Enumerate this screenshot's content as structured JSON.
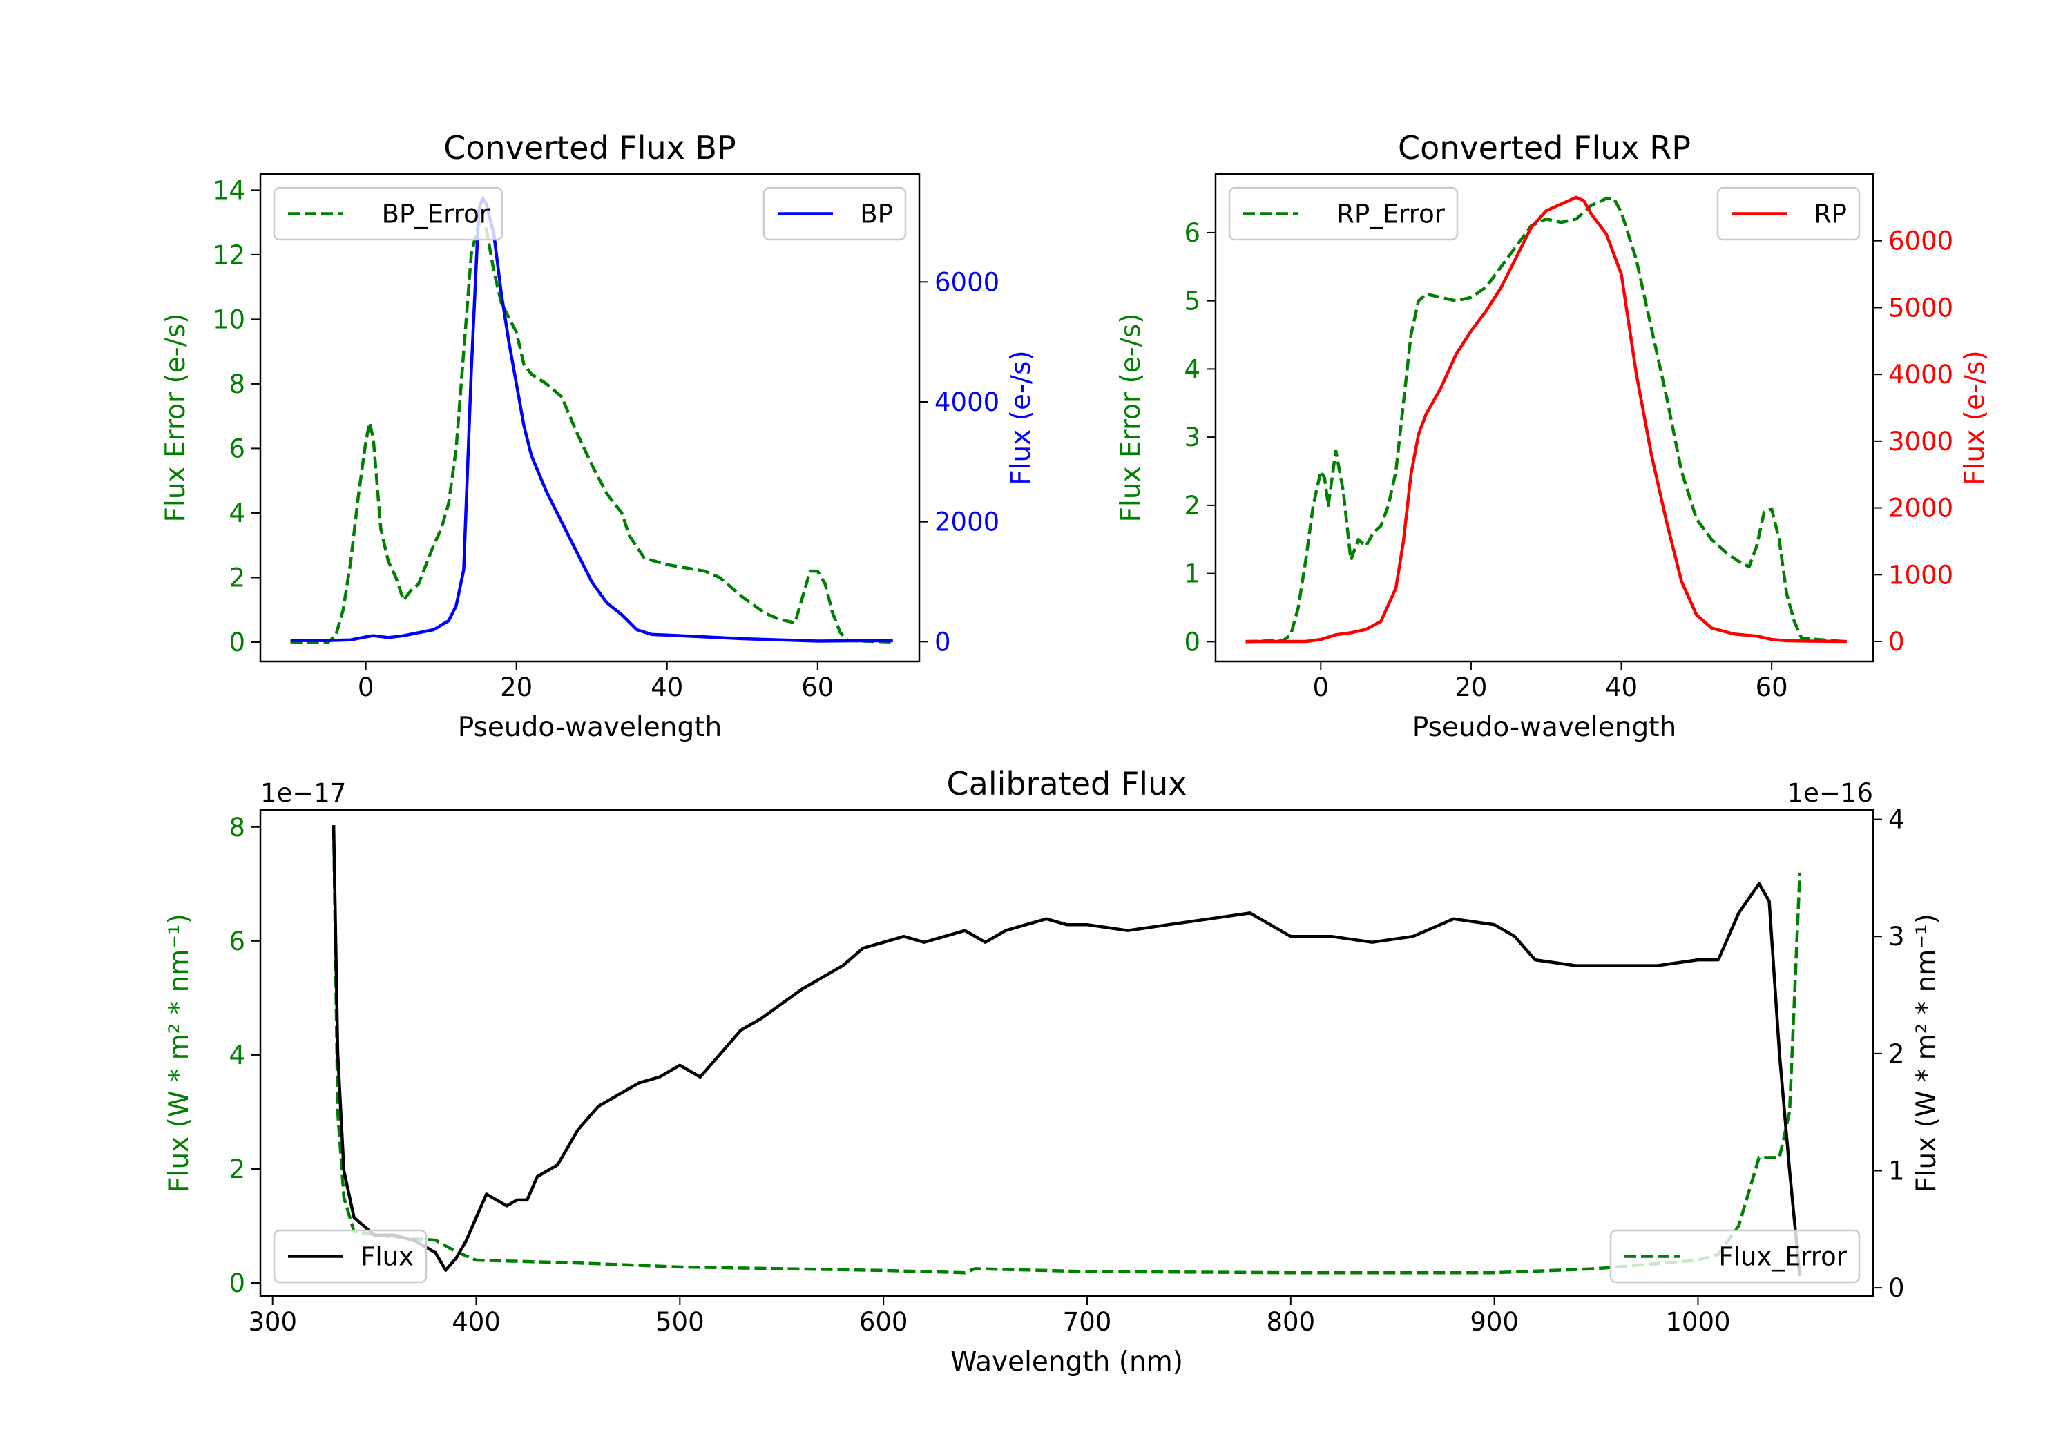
{
  "chart_data": [
    {
      "type": "line",
      "title": "Converted Flux BP",
      "xlabel": "Pseudo-wavelength",
      "ylabel": "Flux Error (e-/s)",
      "ylabel_right": "Flux (e-/s)",
      "xlim": [
        -14,
        73.5
      ],
      "ylim": [
        -0.6,
        14.5
      ],
      "ylim_right": [
        -330,
        7800
      ],
      "xticks": [
        0,
        20,
        40,
        60
      ],
      "yticks": [
        0,
        2,
        4,
        6,
        8,
        10,
        12,
        14
      ],
      "yticks_right": [
        0,
        2000,
        4000,
        6000
      ],
      "left_color": "#008000",
      "right_color": "#0000ff",
      "series": [
        {
          "name": "BP_Error",
          "axis": "left",
          "color": "#008000",
          "style": "dashed",
          "legend": "upper left",
          "x": [
            -10,
            -5,
            -4,
            -3,
            -2,
            -1,
            0,
            0.5,
            1,
            2,
            3,
            4,
            5,
            6,
            7,
            8,
            9,
            10,
            11,
            12,
            13,
            14,
            15,
            16,
            17,
            18,
            20,
            21,
            22,
            24,
            26,
            28,
            30,
            32,
            34,
            35,
            37,
            40,
            45,
            47,
            50,
            53,
            55,
            57,
            58,
            59,
            60,
            61,
            62,
            63,
            64,
            70
          ],
          "y": [
            0,
            0,
            0.2,
            1,
            2.5,
            4.5,
            6.2,
            6.8,
            6.3,
            3.5,
            2.5,
            2.0,
            1.3,
            1.6,
            1.8,
            2.4,
            3.0,
            3.5,
            4.3,
            6,
            9,
            12,
            13,
            12.8,
            11.5,
            10.5,
            9.6,
            8.6,
            8.3,
            8.0,
            7.6,
            6.5,
            5.5,
            4.6,
            4.0,
            3.3,
            2.6,
            2.4,
            2.2,
            2.0,
            1.4,
            0.9,
            0.7,
            0.6,
            1.4,
            2.2,
            2.2,
            1.8,
            0.9,
            0.3,
            0.05,
            0
          ]
        },
        {
          "name": "BP",
          "axis": "right",
          "color": "#0000ff",
          "style": "solid",
          "legend": "upper right",
          "x": [
            -10,
            -5,
            -2,
            0,
            1,
            3,
            5,
            7,
            9,
            11,
            12,
            13,
            14,
            15,
            15.5,
            16,
            17,
            18,
            19,
            20,
            21,
            22,
            24,
            26,
            28,
            30,
            32,
            34,
            36,
            38,
            40,
            45,
            50,
            55,
            60,
            65,
            70
          ],
          "y": [
            20,
            20,
            30,
            80,
            100,
            70,
            100,
            150,
            200,
            350,
            600,
            1200,
            4500,
            7200,
            7400,
            7300,
            6800,
            5800,
            5000,
            4300,
            3600,
            3100,
            2500,
            2000,
            1500,
            1000,
            650,
            450,
            200,
            120,
            110,
            80,
            50,
            30,
            10,
            15,
            15
          ]
        }
      ]
    },
    {
      "type": "line",
      "title": "Converted Flux RP",
      "xlabel": "Pseudo-wavelength",
      "ylabel": "Flux Error (e-/s)",
      "ylabel_right": "Flux (e-/s)",
      "xlim": [
        -14,
        73.5
      ],
      "ylim": [
        -0.29,
        6.86
      ],
      "ylim_right": [
        -300,
        7000
      ],
      "xticks": [
        0,
        20,
        40,
        60
      ],
      "yticks": [
        0,
        1,
        2,
        3,
        4,
        5,
        6
      ],
      "yticks_right": [
        0,
        1000,
        2000,
        3000,
        4000,
        5000,
        6000
      ],
      "left_color": "#008000",
      "right_color": "#ff0000",
      "series": [
        {
          "name": "RP_Error",
          "axis": "left",
          "color": "#008000",
          "style": "dashed",
          "legend": "upper left",
          "x": [
            -10,
            -5,
            -4,
            -3,
            -2,
            -1,
            0,
            0.5,
            1,
            2,
            3,
            4,
            5,
            6,
            7,
            8,
            9,
            10,
            11,
            12,
            13,
            14,
            16,
            18,
            20,
            22,
            24,
            26,
            28,
            30,
            32,
            34,
            36,
            38,
            39,
            40,
            42,
            44,
            46,
            48,
            50,
            52,
            54,
            56,
            57,
            58,
            59,
            60,
            61,
            62,
            63,
            64,
            70
          ],
          "y": [
            0,
            0.02,
            0.1,
            0.5,
            1.2,
            2,
            2.5,
            2.4,
            2.0,
            2.8,
            2.2,
            1.2,
            1.5,
            1.4,
            1.6,
            1.7,
            2.0,
            2.5,
            3.5,
            4.5,
            5.0,
            5.1,
            5.05,
            5.0,
            5.05,
            5.2,
            5.5,
            5.8,
            6.1,
            6.2,
            6.15,
            6.2,
            6.4,
            6.5,
            6.5,
            6.3,
            5.6,
            4.6,
            3.6,
            2.5,
            1.8,
            1.5,
            1.3,
            1.15,
            1.1,
            1.4,
            1.9,
            1.95,
            1.5,
            0.7,
            0.3,
            0.05,
            0
          ]
        },
        {
          "name": "RP",
          "axis": "right",
          "color": "#ff0000",
          "style": "solid",
          "legend": "upper right",
          "x": [
            -10,
            -2,
            0,
            2,
            4,
            6,
            8,
            10,
            11,
            12,
            13,
            14,
            16,
            18,
            20,
            22,
            24,
            26,
            28,
            30,
            32,
            34,
            35,
            36,
            38,
            40,
            42,
            44,
            46,
            48,
            50,
            52,
            55,
            58,
            60,
            62,
            65,
            70
          ],
          "y": [
            0,
            0,
            30,
            100,
            130,
            180,
            300,
            800,
            1500,
            2500,
            3100,
            3400,
            3800,
            4300,
            4650,
            4950,
            5300,
            5750,
            6200,
            6450,
            6550,
            6650,
            6600,
            6400,
            6100,
            5500,
            4000,
            2800,
            1800,
            900,
            400,
            200,
            110,
            80,
            30,
            10,
            5,
            0
          ]
        }
      ]
    },
    {
      "type": "line",
      "title": "Calibrated Flux",
      "xlabel": "Wavelength (nm)",
      "ylabel": "Flux (W * m² * nm⁻¹)",
      "ylabel_right": "Flux (W * m² * nm⁻¹)",
      "offset_left": "1e−17",
      "offset_right": "1e−16",
      "xlim": [
        294,
        1086
      ],
      "ylim": [
        -0.23,
        8.3
      ],
      "ylim_right": [
        -0.07,
        4.08
      ],
      "xticks": [
        300,
        400,
        500,
        600,
        700,
        800,
        900,
        1000
      ],
      "yticks": [
        0,
        2,
        4,
        6,
        8
      ],
      "yticks_right": [
        0,
        1,
        2,
        3,
        4
      ],
      "left_color": "#008000",
      "right_color": "#000000",
      "series": [
        {
          "name": "Flux_Error",
          "axis": "left",
          "color": "#008000",
          "style": "dashed",
          "legend": "lower right",
          "x": [
            330,
            332,
            335,
            340,
            360,
            380,
            390,
            400,
            450,
            500,
            600,
            640,
            645,
            700,
            800,
            900,
            950,
            1000,
            1010,
            1020,
            1030,
            1040,
            1045,
            1050
          ],
          "y": [
            8.0,
            3.0,
            1.5,
            0.9,
            0.8,
            0.75,
            0.55,
            0.4,
            0.35,
            0.28,
            0.22,
            0.18,
            0.25,
            0.2,
            0.18,
            0.18,
            0.25,
            0.4,
            0.5,
            1.0,
            2.2,
            2.2,
            3.0,
            7.2
          ]
        },
        {
          "name": "Flux",
          "axis": "right",
          "color": "#000000",
          "style": "solid",
          "legend": "lower left",
          "x": [
            330,
            332,
            335,
            340,
            350,
            360,
            370,
            380,
            385,
            390,
            395,
            400,
            405,
            410,
            415,
            420,
            425,
            430,
            440,
            450,
            460,
            470,
            480,
            490,
            500,
            510,
            520,
            530,
            540,
            560,
            580,
            590,
            600,
            610,
            620,
            640,
            650,
            660,
            670,
            680,
            690,
            700,
            720,
            740,
            760,
            780,
            800,
            820,
            840,
            860,
            880,
            900,
            910,
            920,
            940,
            960,
            980,
            1000,
            1010,
            1020,
            1030,
            1035,
            1040,
            1045,
            1050
          ],
          "y": [
            3.95,
            2.0,
            1.0,
            0.6,
            0.45,
            0.45,
            0.4,
            0.3,
            0.15,
            0.25,
            0.4,
            0.6,
            0.8,
            0.75,
            0.7,
            0.75,
            0.75,
            0.95,
            1.05,
            1.35,
            1.55,
            1.65,
            1.75,
            1.8,
            1.9,
            1.8,
            2.0,
            2.2,
            2.3,
            2.55,
            2.75,
            2.9,
            2.95,
            3.0,
            2.95,
            3.05,
            2.95,
            3.05,
            3.1,
            3.15,
            3.1,
            3.1,
            3.05,
            3.1,
            3.15,
            3.2,
            3.0,
            3.0,
            2.95,
            3.0,
            3.15,
            3.1,
            3.0,
            2.8,
            2.75,
            2.75,
            2.75,
            2.8,
            2.8,
            3.2,
            3.45,
            3.3,
            2.0,
            1.0,
            0.1
          ]
        }
      ]
    }
  ]
}
